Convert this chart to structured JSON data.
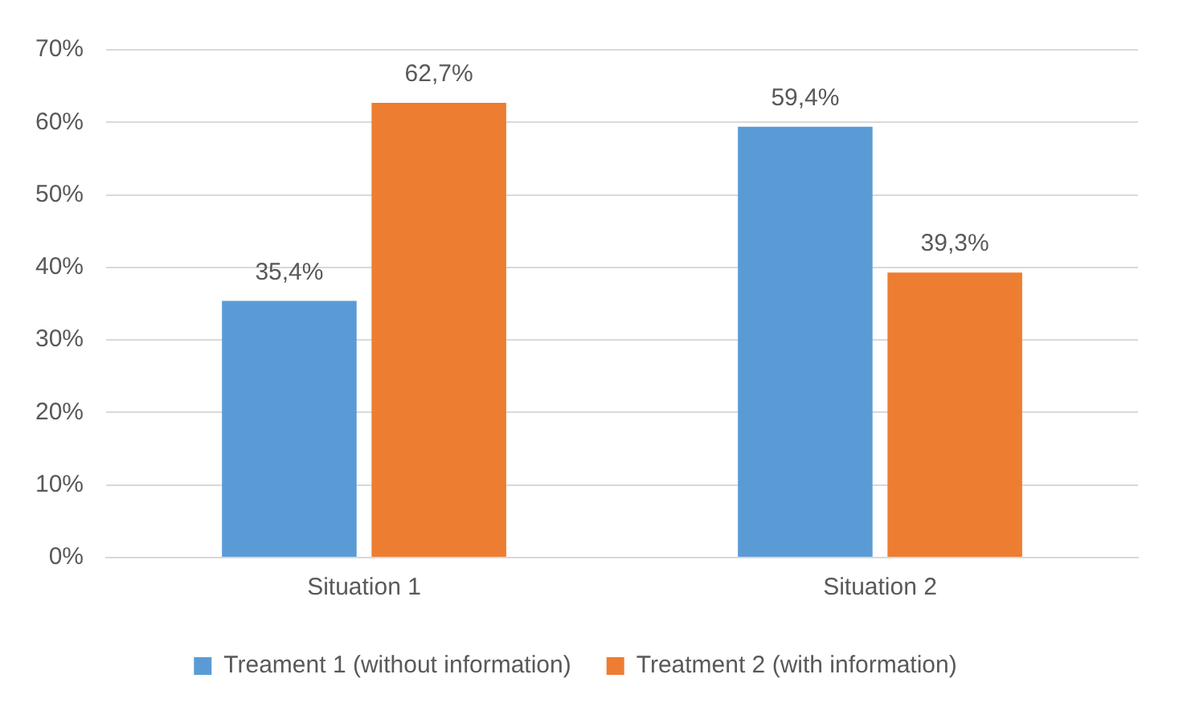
{
  "chart_data": {
    "type": "bar",
    "categories": [
      "Situation 1",
      "Situation 2"
    ],
    "series": [
      {
        "name": "Treament 1 (without information)",
        "color": "#5b9bd5",
        "values": [
          35.4,
          59.4
        ],
        "value_labels": [
          "35,4%",
          "59,4%"
        ]
      },
      {
        "name": "Treatment 2 (with information)",
        "color": "#ed7d31",
        "values": [
          62.7,
          39.3
        ],
        "value_labels": [
          "62,7%",
          "39,3%"
        ]
      }
    ],
    "ylim": [
      0,
      70
    ],
    "yticks": [
      {
        "value": 0,
        "label": "0%"
      },
      {
        "value": 10,
        "label": "10%"
      },
      {
        "value": 20,
        "label": "20%"
      },
      {
        "value": 30,
        "label": "30%"
      },
      {
        "value": 40,
        "label": "40%"
      },
      {
        "value": 50,
        "label": "50%"
      },
      {
        "value": 60,
        "label": "60%"
      },
      {
        "value": 70,
        "label": "70%"
      }
    ],
    "grid": "y",
    "legend": "bottom"
  }
}
